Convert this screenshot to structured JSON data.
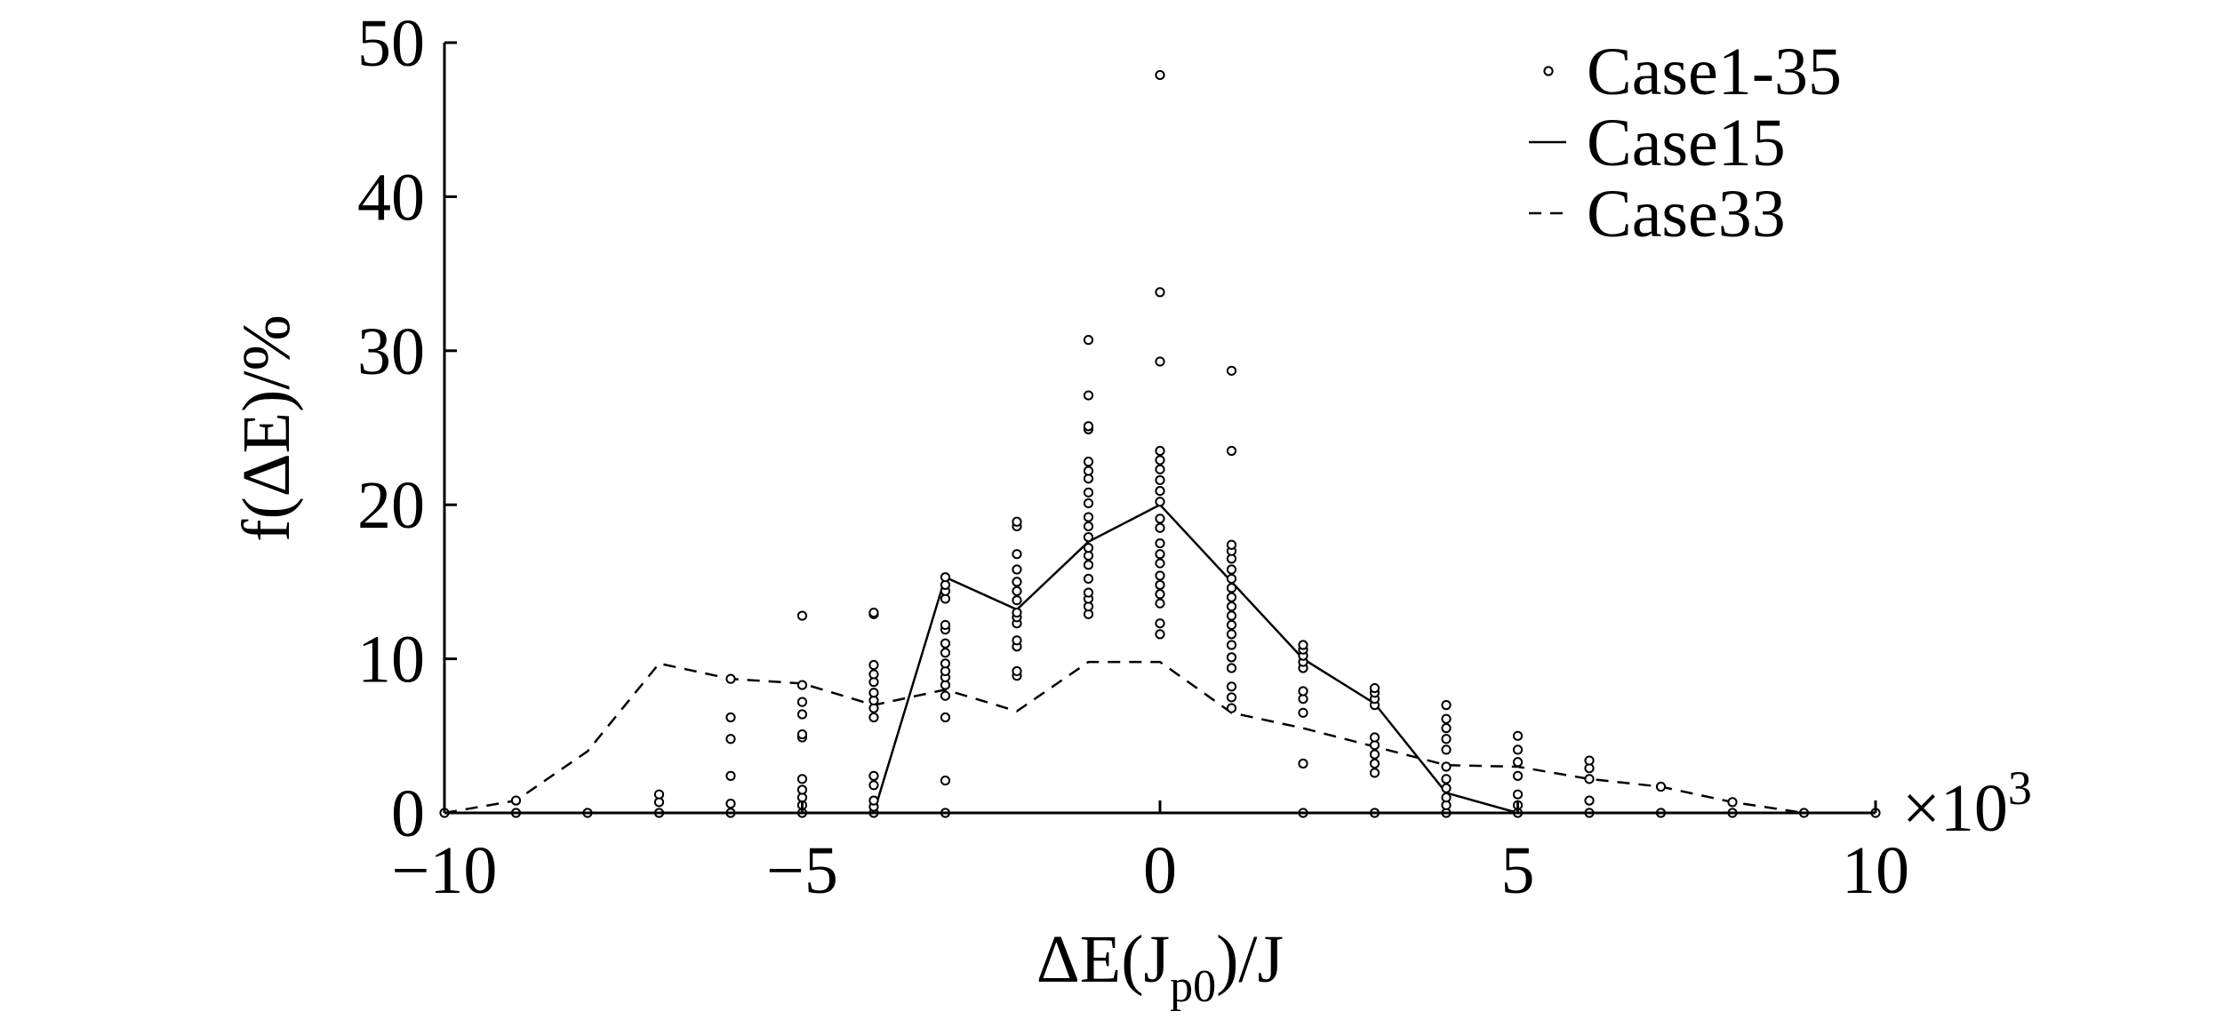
{
  "chart_data": {
    "type": "scatter",
    "xlabel": {
      "prefix": "ΔE(J",
      "sub": "p0",
      "suffix": ")/J"
    },
    "ylabel": "f(ΔE)/%",
    "x_multiplier": "×10",
    "x_multiplier_exp": "3",
    "xlim": [
      -10,
      10
    ],
    "ylim": [
      0,
      50
    ],
    "xticks": [
      -10,
      -5,
      0,
      5,
      10
    ],
    "xtick_labels": [
      "−10",
      "−5",
      "0",
      "5",
      "10"
    ],
    "yticks": [
      0,
      10,
      20,
      30,
      40,
      50
    ],
    "ytick_labels": [
      "0",
      "10",
      "20",
      "30",
      "40",
      "50"
    ],
    "grid": false,
    "legend_position": "top-right",
    "legend": [
      "Case1-35",
      "Case15",
      "Case33"
    ],
    "series": [
      {
        "name": "Case1-35",
        "kind": "scatter",
        "marker": "open-circle",
        "points": [
          [
            -10,
            0
          ],
          [
            -9,
            0
          ],
          [
            -9,
            0.8
          ],
          [
            -8,
            0
          ],
          [
            -7,
            0
          ],
          [
            -7,
            0.7
          ],
          [
            -7,
            1.2
          ],
          [
            -6,
            0
          ],
          [
            -6,
            0.6
          ],
          [
            -6,
            2.4
          ],
          [
            -6,
            4.8
          ],
          [
            -6,
            6.2
          ],
          [
            -6,
            8.7
          ],
          [
            -5,
            0
          ],
          [
            -5,
            0.5
          ],
          [
            -5,
            1.0
          ],
          [
            -5,
            1.5
          ],
          [
            -5,
            2.2
          ],
          [
            -5,
            4.9
          ],
          [
            -5,
            5.1
          ],
          [
            -5,
            6.4
          ],
          [
            -5,
            7.2
          ],
          [
            -5,
            8.3
          ],
          [
            -5,
            12.8
          ],
          [
            -4,
            0
          ],
          [
            -4,
            0.4
          ],
          [
            -4,
            0.8
          ],
          [
            -4,
            1.8
          ],
          [
            -4,
            2.4
          ],
          [
            -4,
            6.2
          ],
          [
            -4,
            6.8
          ],
          [
            -4,
            7.3
          ],
          [
            -4,
            7.8
          ],
          [
            -4,
            8.5
          ],
          [
            -4,
            9.0
          ],
          [
            -4,
            9.6
          ],
          [
            -4,
            12.9
          ],
          [
            -4,
            13.0
          ],
          [
            -3,
            0
          ],
          [
            -3,
            2.1
          ],
          [
            -3,
            6.2
          ],
          [
            -3,
            7.6
          ],
          [
            -3,
            8.3
          ],
          [
            -3,
            8.8
          ],
          [
            -3,
            9.2
          ],
          [
            -3,
            9.7
          ],
          [
            -3,
            10.4
          ],
          [
            -3,
            11.0
          ],
          [
            -3,
            11.9
          ],
          [
            -3,
            12.2
          ],
          [
            -3,
            13.9
          ],
          [
            -3,
            14.4
          ],
          [
            -3,
            14.8
          ],
          [
            -3,
            15.3
          ],
          [
            -2,
            8.9
          ],
          [
            -2,
            9.2
          ],
          [
            -2,
            10.8
          ],
          [
            -2,
            11.2
          ],
          [
            -2,
            12.3
          ],
          [
            -2,
            12.7
          ],
          [
            -2,
            13.0
          ],
          [
            -2,
            13.8
          ],
          [
            -2,
            14.4
          ],
          [
            -2,
            15.0
          ],
          [
            -2,
            15.8
          ],
          [
            -2,
            16.8
          ],
          [
            -2,
            18.6
          ],
          [
            -2,
            18.9
          ],
          [
            -1,
            12.9
          ],
          [
            -1,
            13.4
          ],
          [
            -1,
            13.9
          ],
          [
            -1,
            14.3
          ],
          [
            -1,
            15.2
          ],
          [
            -1,
            16.1
          ],
          [
            -1,
            16.7
          ],
          [
            -1,
            17.2
          ],
          [
            -1,
            17.9
          ],
          [
            -1,
            18.6
          ],
          [
            -1,
            19.2
          ],
          [
            -1,
            20.1
          ],
          [
            -1,
            20.8
          ],
          [
            -1,
            21.7
          ],
          [
            -1,
            22.2
          ],
          [
            -1,
            22.8
          ],
          [
            -1,
            24.9
          ],
          [
            -1,
            25.1
          ],
          [
            -1,
            27.1
          ],
          [
            -1,
            30.7
          ],
          [
            0,
            11.6
          ],
          [
            0,
            12.3
          ],
          [
            0,
            13.6
          ],
          [
            0,
            14.2
          ],
          [
            0,
            14.8
          ],
          [
            0,
            15.4
          ],
          [
            0,
            16.2
          ],
          [
            0,
            16.8
          ],
          [
            0,
            17.5
          ],
          [
            0,
            18.5
          ],
          [
            0,
            19.1
          ],
          [
            0,
            20.2
          ],
          [
            0,
            20.9
          ],
          [
            0,
            21.6
          ],
          [
            0,
            22.3
          ],
          [
            0,
            22.9
          ],
          [
            0,
            23.5
          ],
          [
            0,
            29.3
          ],
          [
            0,
            33.8
          ],
          [
            0,
            47.9
          ],
          [
            1,
            6.8
          ],
          [
            1,
            7.5
          ],
          [
            1,
            8.2
          ],
          [
            1,
            9.4
          ],
          [
            1,
            10.1
          ],
          [
            1,
            10.9
          ],
          [
            1,
            11.6
          ],
          [
            1,
            12.2
          ],
          [
            1,
            12.8
          ],
          [
            1,
            13.4
          ],
          [
            1,
            14.0
          ],
          [
            1,
            14.6
          ],
          [
            1,
            15.2
          ],
          [
            1,
            15.8
          ],
          [
            1,
            16.5
          ],
          [
            1,
            17.0
          ],
          [
            1,
            17.4
          ],
          [
            1,
            23.5
          ],
          [
            1,
            28.7
          ],
          [
            2,
            0
          ],
          [
            2,
            3.2
          ],
          [
            2,
            6.5
          ],
          [
            2,
            7.4
          ],
          [
            2,
            7.9
          ],
          [
            2,
            9.4
          ],
          [
            2,
            9.8
          ],
          [
            2,
            10.2
          ],
          [
            2,
            10.6
          ],
          [
            2,
            10.9
          ],
          [
            3,
            0
          ],
          [
            3,
            2.6
          ],
          [
            3,
            3.2
          ],
          [
            3,
            3.8
          ],
          [
            3,
            4.4
          ],
          [
            3,
            4.9
          ],
          [
            3,
            7.0
          ],
          [
            3,
            7.4
          ],
          [
            3,
            7.8
          ],
          [
            3,
            8.1
          ],
          [
            4,
            0
          ],
          [
            4,
            0.5
          ],
          [
            4,
            1.0
          ],
          [
            4,
            1.6
          ],
          [
            4,
            2.2
          ],
          [
            4,
            3.0
          ],
          [
            4,
            4.1
          ],
          [
            4,
            4.8
          ],
          [
            4,
            5.5
          ],
          [
            4,
            6.1
          ],
          [
            4,
            7.0
          ],
          [
            5,
            0
          ],
          [
            5,
            0.5
          ],
          [
            5,
            1.2
          ],
          [
            5,
            2.4
          ],
          [
            5,
            3.3
          ],
          [
            5,
            4.1
          ],
          [
            5,
            5.0
          ],
          [
            6,
            0
          ],
          [
            6,
            0.8
          ],
          [
            6,
            2.2
          ],
          [
            6,
            2.9
          ],
          [
            6,
            3.4
          ],
          [
            7,
            0
          ],
          [
            7,
            1.7
          ],
          [
            8,
            0
          ],
          [
            8,
            0.7
          ],
          [
            9,
            0
          ],
          [
            10,
            0
          ]
        ]
      },
      {
        "name": "Case15",
        "kind": "line",
        "style": "solid",
        "points": [
          [
            -10,
            0
          ],
          [
            -9,
            0
          ],
          [
            -8,
            0
          ],
          [
            -7,
            0
          ],
          [
            -6,
            0
          ],
          [
            -5,
            0
          ],
          [
            -4,
            0
          ],
          [
            -3,
            15.3
          ],
          [
            -2,
            13.2
          ],
          [
            -1,
            17.6
          ],
          [
            0,
            20.0
          ],
          [
            1,
            15.0
          ],
          [
            2,
            10.0
          ],
          [
            3,
            7.1
          ],
          [
            4,
            1.3
          ],
          [
            5,
            0
          ],
          [
            6,
            0
          ],
          [
            7,
            0
          ],
          [
            8,
            0
          ],
          [
            9,
            0
          ],
          [
            10,
            0
          ]
        ]
      },
      {
        "name": "Case33",
        "kind": "line",
        "style": "dashed",
        "points": [
          [
            -10,
            0
          ],
          [
            -9,
            0.8
          ],
          [
            -8,
            4.0
          ],
          [
            -7,
            9.7
          ],
          [
            -6,
            8.7
          ],
          [
            -5,
            8.4
          ],
          [
            -4,
            7.0
          ],
          [
            -3,
            8.0
          ],
          [
            -2,
            6.6
          ],
          [
            -1,
            9.8
          ],
          [
            0,
            9.8
          ],
          [
            1,
            6.5
          ],
          [
            2,
            5.5
          ],
          [
            3,
            4.3
          ],
          [
            4,
            3.1
          ],
          [
            5,
            3.0
          ],
          [
            6,
            2.2
          ],
          [
            7,
            1.7
          ],
          [
            8,
            0.7
          ],
          [
            9,
            0
          ],
          [
            10,
            0
          ]
        ]
      }
    ]
  }
}
